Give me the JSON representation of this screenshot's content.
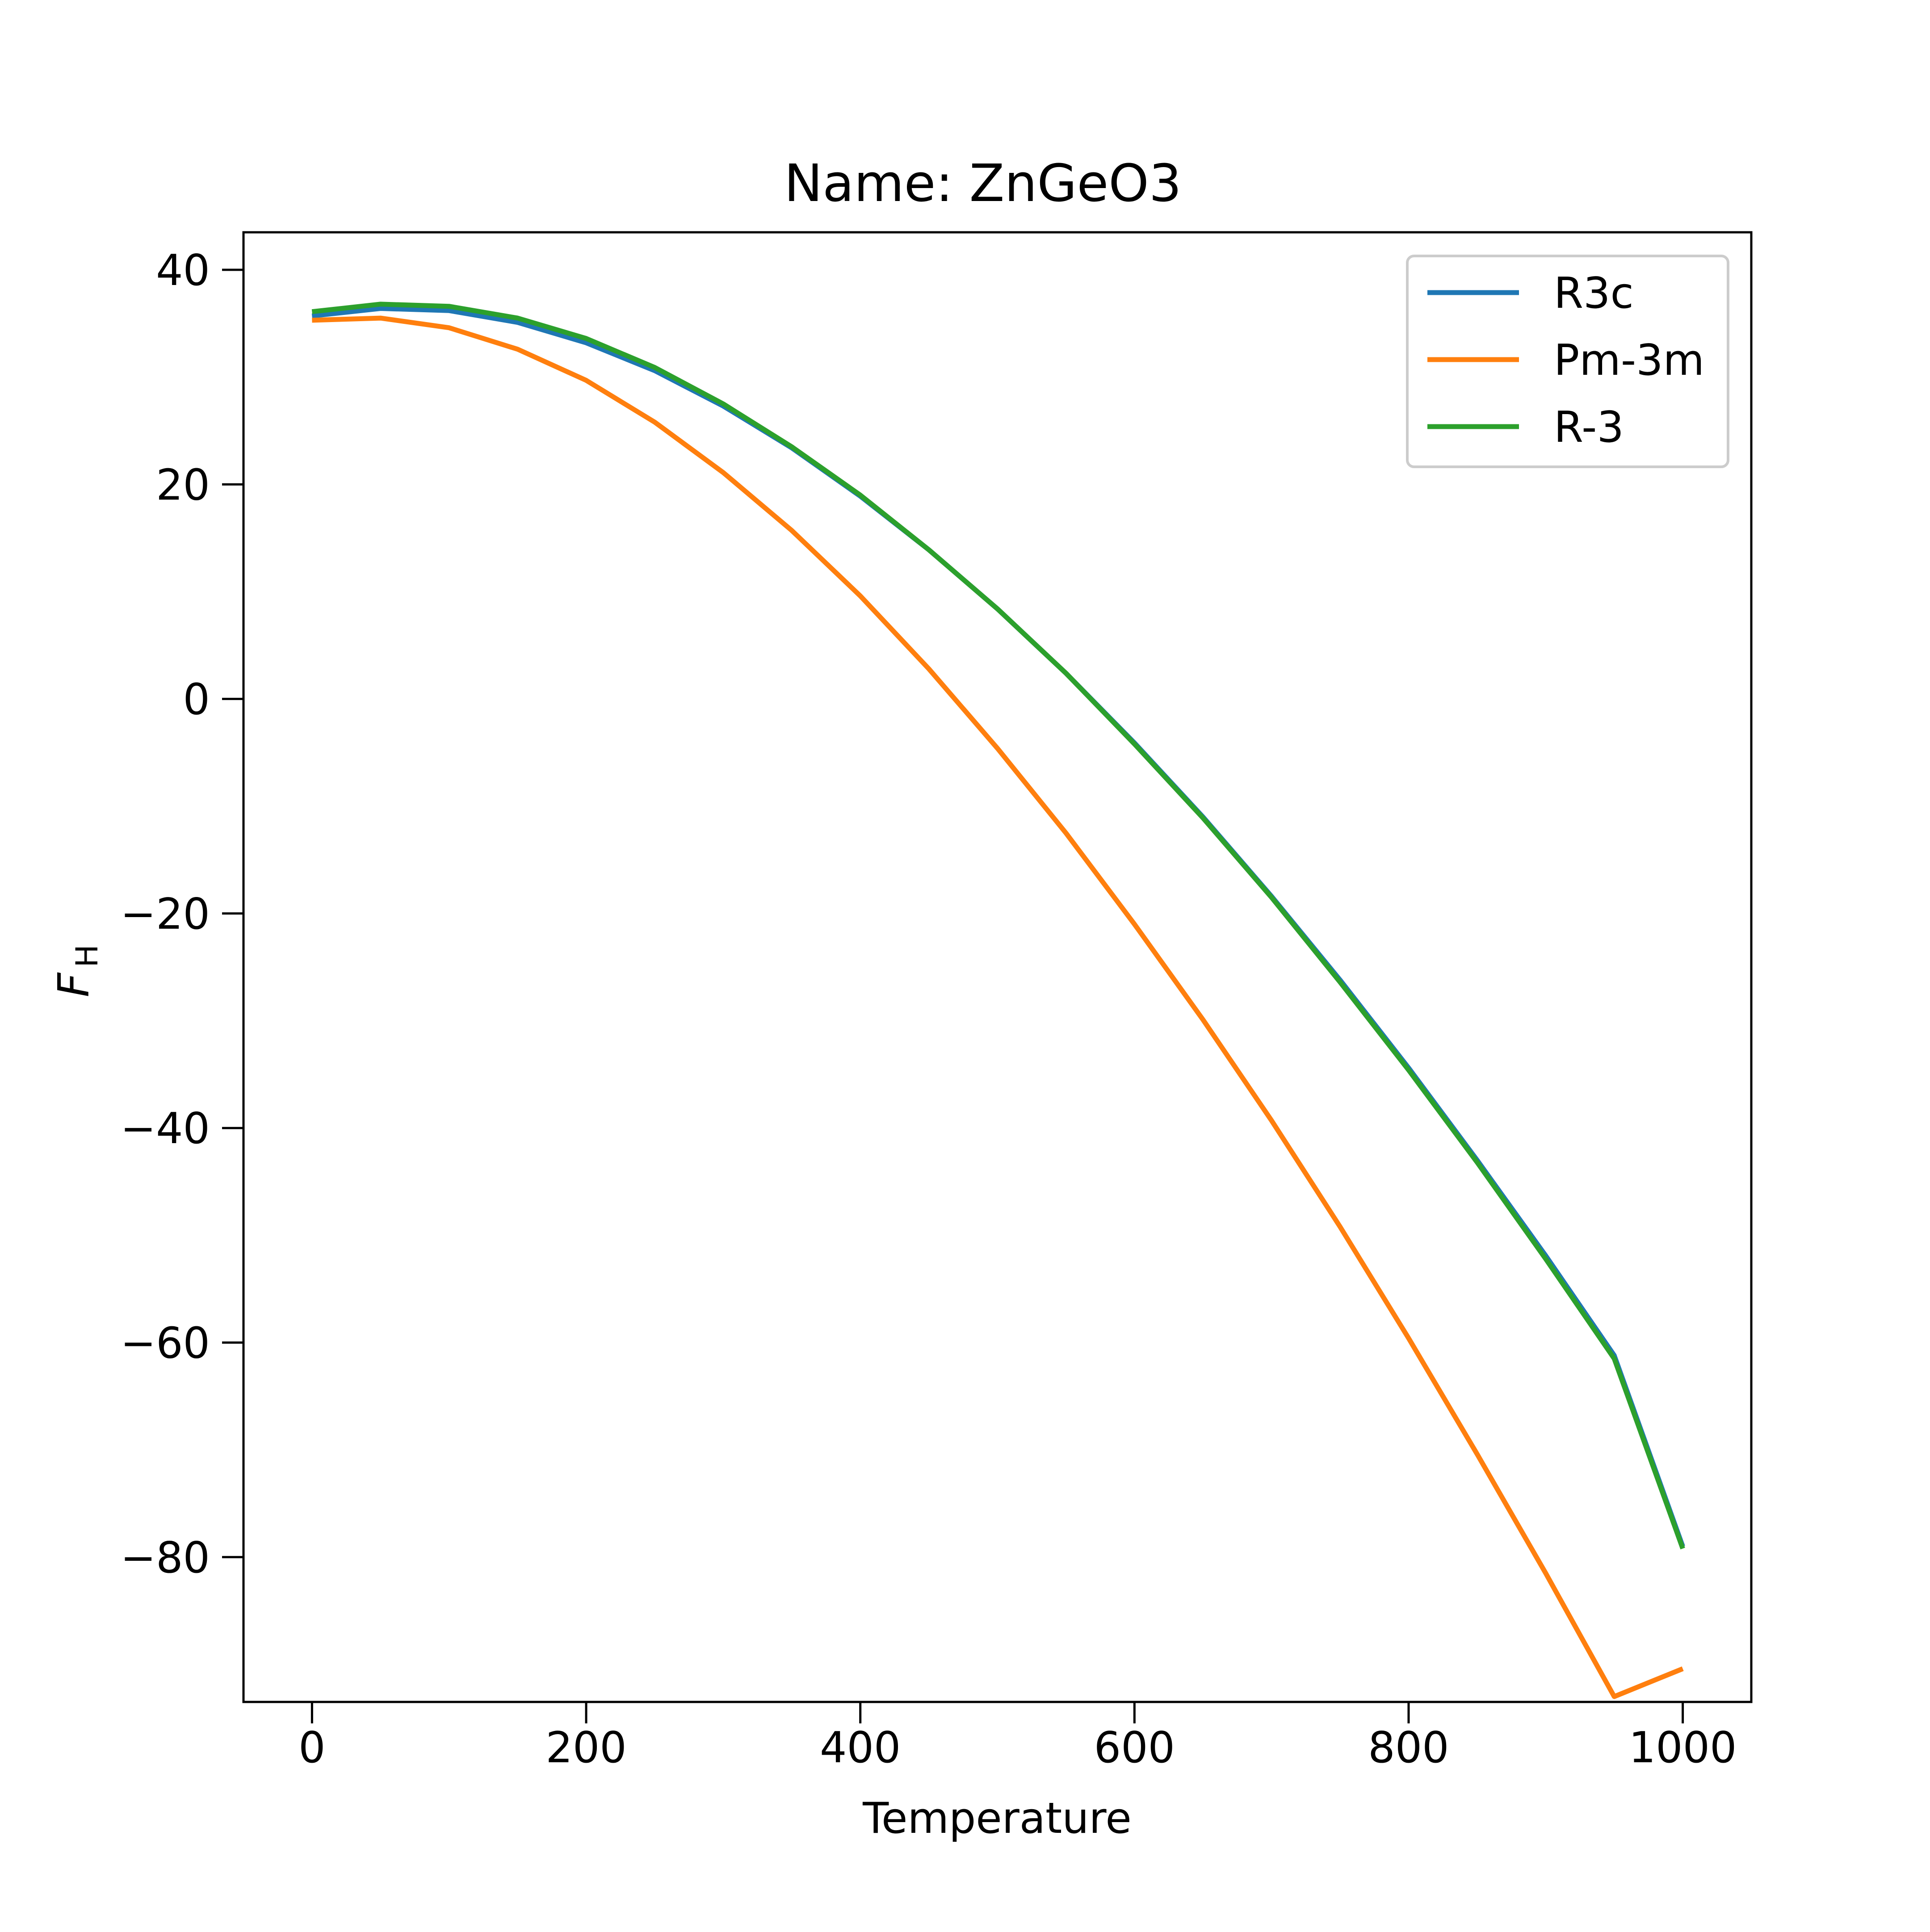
{
  "chart_data": {
    "type": "line",
    "title": "Name: ZnGeO3",
    "xlabel": "Temperature",
    "ylabel_main": "F",
    "ylabel_sub": "H",
    "xlim": [
      -50,
      1050
    ],
    "ylim": [
      -93.5,
      43.5
    ],
    "xticks": [
      0,
      200,
      400,
      600,
      800,
      1000
    ],
    "xtick_labels": [
      "0",
      "200",
      "400",
      "600",
      "800",
      "1000"
    ],
    "yticks": [
      40,
      20,
      0,
      -20,
      -40,
      -60,
      -80
    ],
    "ytick_labels": [
      "40",
      "20",
      "0",
      "−20",
      "−40",
      "−60",
      "−80"
    ],
    "grid": false,
    "legend_position": "top-right",
    "x": [
      0,
      50,
      100,
      150,
      200,
      250,
      300,
      350,
      400,
      450,
      500,
      550,
      600,
      650,
      700,
      750,
      800,
      850,
      900,
      950,
      1000
    ],
    "series": [
      {
        "name": "R3c",
        "color": "#1f77b4",
        "values": [
          35.7,
          36.4,
          36.2,
          35.1,
          33.2,
          30.6,
          27.3,
          23.4,
          18.9,
          13.9,
          8.4,
          2.4,
          -4.1,
          -11.0,
          -18.4,
          -26.2,
          -34.4,
          -43.0,
          -51.9,
          -61.2,
          -79.0
        ]
      },
      {
        "name": "Pm-3m",
        "color": "#ff7f0e",
        "values": [
          35.3,
          35.5,
          34.6,
          32.6,
          29.7,
          25.8,
          21.1,
          15.7,
          9.6,
          2.8,
          -4.6,
          -12.5,
          -21.0,
          -29.9,
          -39.3,
          -49.2,
          -59.6,
          -70.4,
          -81.5,
          -93.0,
          -90.4
        ]
      },
      {
        "name": "R-3",
        "color": "#2ca02c",
        "values": [
          36.1,
          36.8,
          36.6,
          35.5,
          33.6,
          30.9,
          27.5,
          23.5,
          19.0,
          13.9,
          8.4,
          2.4,
          -4.2,
          -11.1,
          -18.5,
          -26.4,
          -34.6,
          -43.2,
          -52.2,
          -61.5,
          -79.2
        ]
      }
    ]
  }
}
